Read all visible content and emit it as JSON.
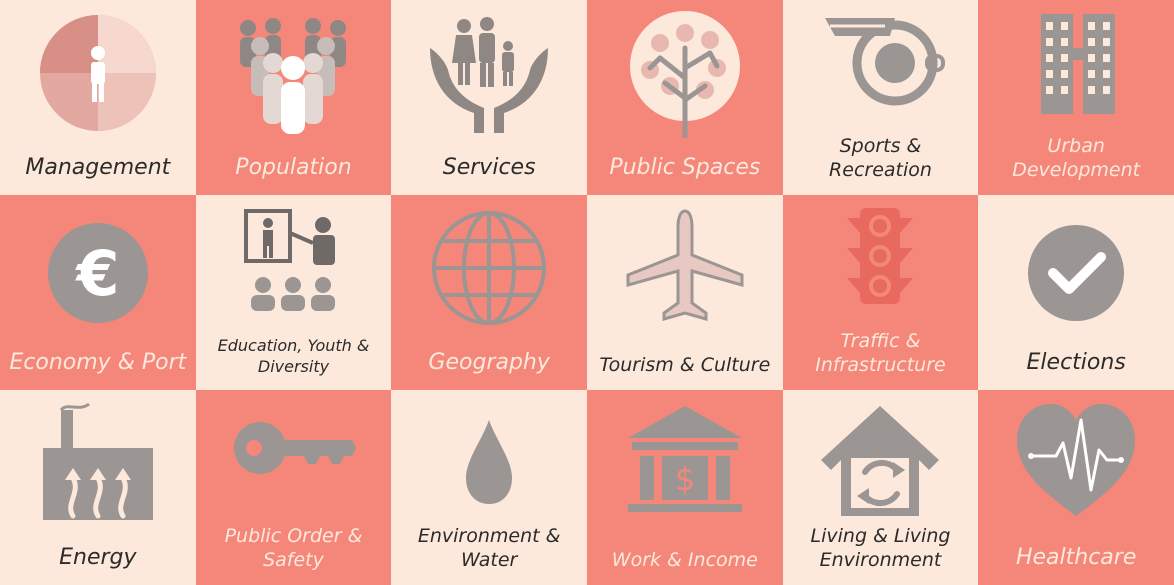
{
  "colors": {
    "light": "#fde9db",
    "salmon": "#f5877a",
    "icon_gray": "#9b9593",
    "pink": "#e8b8b0"
  },
  "tiles": [
    {
      "label": "Management",
      "icon": "pie-person-icon"
    },
    {
      "label": "Population",
      "icon": "crowd-icon"
    },
    {
      "label": "Services",
      "icon": "family-hands-icon"
    },
    {
      "label": "Public Spaces",
      "icon": "tree-icon"
    },
    {
      "label": "Sports &\nRecreation",
      "icon": "whistle-icon"
    },
    {
      "label": "Urban\nDevelopment",
      "icon": "buildings-icon"
    },
    {
      "label": "Economy & Port",
      "icon": "euro-icon"
    },
    {
      "label": "Education, Youth &\nDiversity",
      "icon": "classroom-icon"
    },
    {
      "label": "Geography",
      "icon": "globe-icon"
    },
    {
      "label": "Tourism & Culture",
      "icon": "airplane-icon"
    },
    {
      "label": "Traffic &\nInfrastructure",
      "icon": "traffic-light-icon"
    },
    {
      "label": "Elections",
      "icon": "checkmark-icon"
    },
    {
      "label": "Energy",
      "icon": "factory-heat-icon"
    },
    {
      "label": "Public Order &\nSafety",
      "icon": "key-icon"
    },
    {
      "label": "Environment &\nWater",
      "icon": "water-drop-icon"
    },
    {
      "label": "Work & Income",
      "icon": "bank-dollar-icon"
    },
    {
      "label": "Living & Living\nEnvironment",
      "icon": "house-recycle-icon"
    },
    {
      "label": "Healthcare",
      "icon": "heart-pulse-icon"
    }
  ]
}
